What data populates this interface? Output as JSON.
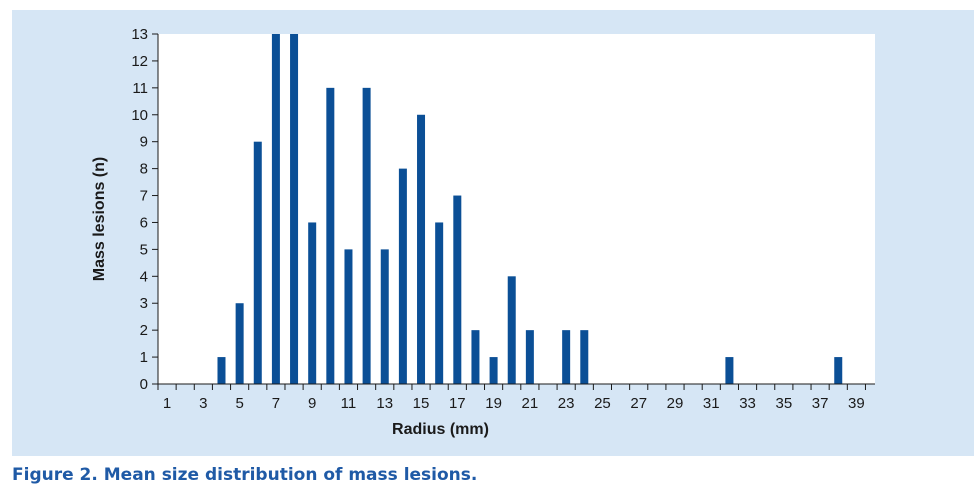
{
  "colors": {
    "panel_background": "#d6e6f5",
    "plot_background": "#ffffff",
    "bar": "#0b4f96",
    "axis": "#1a1a1a",
    "caption": "#1f5aa6"
  },
  "caption": "Figure 2. Mean size distribution of mass lesions.",
  "chart_data": {
    "type": "bar",
    "title": "",
    "xlabel": "Radius (mm)",
    "ylabel": "Mass lesions (n)",
    "ylim": [
      0,
      13
    ],
    "xlim": [
      0,
      39
    ],
    "grid": false,
    "x": [
      4,
      5,
      6,
      7,
      8,
      9,
      10,
      11,
      12,
      13,
      14,
      15,
      16,
      17,
      18,
      19,
      20,
      21,
      23,
      24,
      32,
      38
    ],
    "values": [
      1,
      3,
      9,
      13,
      13,
      6,
      11,
      5,
      11,
      5,
      8,
      10,
      6,
      7,
      2,
      1,
      4,
      2,
      2,
      2,
      1,
      1
    ],
    "x_ticks": [
      1,
      3,
      5,
      7,
      9,
      11,
      13,
      15,
      17,
      19,
      21,
      23,
      25,
      27,
      29,
      31,
      33,
      35,
      37,
      39
    ],
    "y_ticks": [
      0,
      1,
      2,
      3,
      4,
      5,
      6,
      7,
      8,
      9,
      10,
      11,
      12,
      13
    ]
  }
}
